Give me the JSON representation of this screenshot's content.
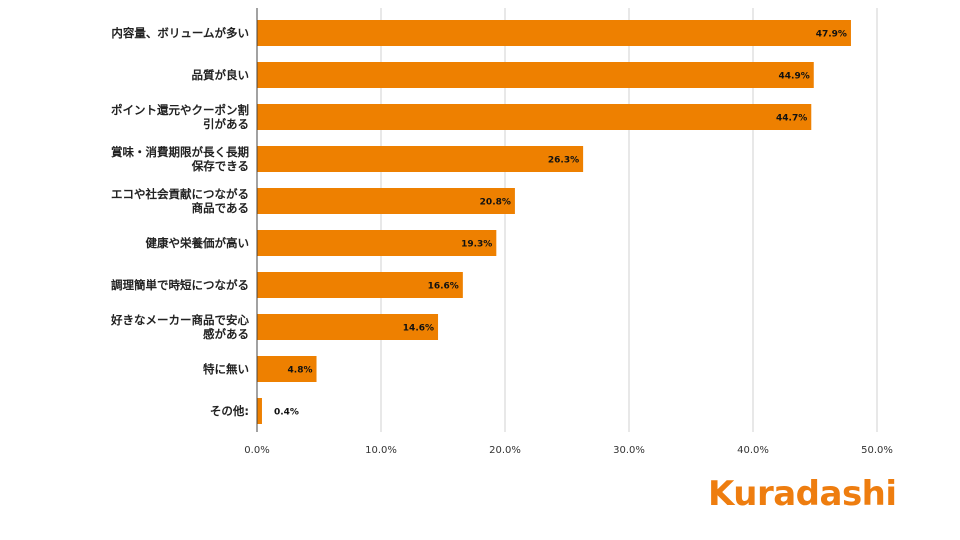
{
  "chart_data": {
    "type": "bar",
    "orientation": "horizontal",
    "categories": [
      [
        "内容量、ボリュームが多い"
      ],
      [
        "品質が良い"
      ],
      [
        "ポイント還元やクーポン割",
        "引がある"
      ],
      [
        "賞味・消費期限が長く長期",
        "保存できる"
      ],
      [
        "エコや社会貢献につながる",
        "商品である"
      ],
      [
        "健康や栄養価が高い"
      ],
      [
        "調理簡単で時短につながる"
      ],
      [
        "好きなメーカー商品で安心",
        "感がある"
      ],
      [
        "特に無い"
      ],
      [
        "その他:"
      ]
    ],
    "values": [
      47.9,
      44.9,
      44.7,
      26.3,
      20.8,
      19.3,
      16.6,
      14.6,
      4.8,
      0.4
    ],
    "value_labels": [
      "47.9%",
      "44.9%",
      "44.7%",
      "26.3%",
      "20.8%",
      "19.3%",
      "16.6%",
      "14.6%",
      "4.8%",
      "0.4%"
    ],
    "xlim": [
      0,
      50
    ],
    "xticks": [
      0,
      10,
      20,
      30,
      40,
      50
    ],
    "xtick_labels": [
      "0.0%",
      "10.0%",
      "20.0%",
      "30.0%",
      "40.0%",
      "50.0%"
    ],
    "grid": true,
    "bar_color": "#ee8000",
    "grid_color": "#d0d0d0"
  },
  "brand": {
    "logo_text": "Kuradashi",
    "color": "#ee7d0f"
  }
}
